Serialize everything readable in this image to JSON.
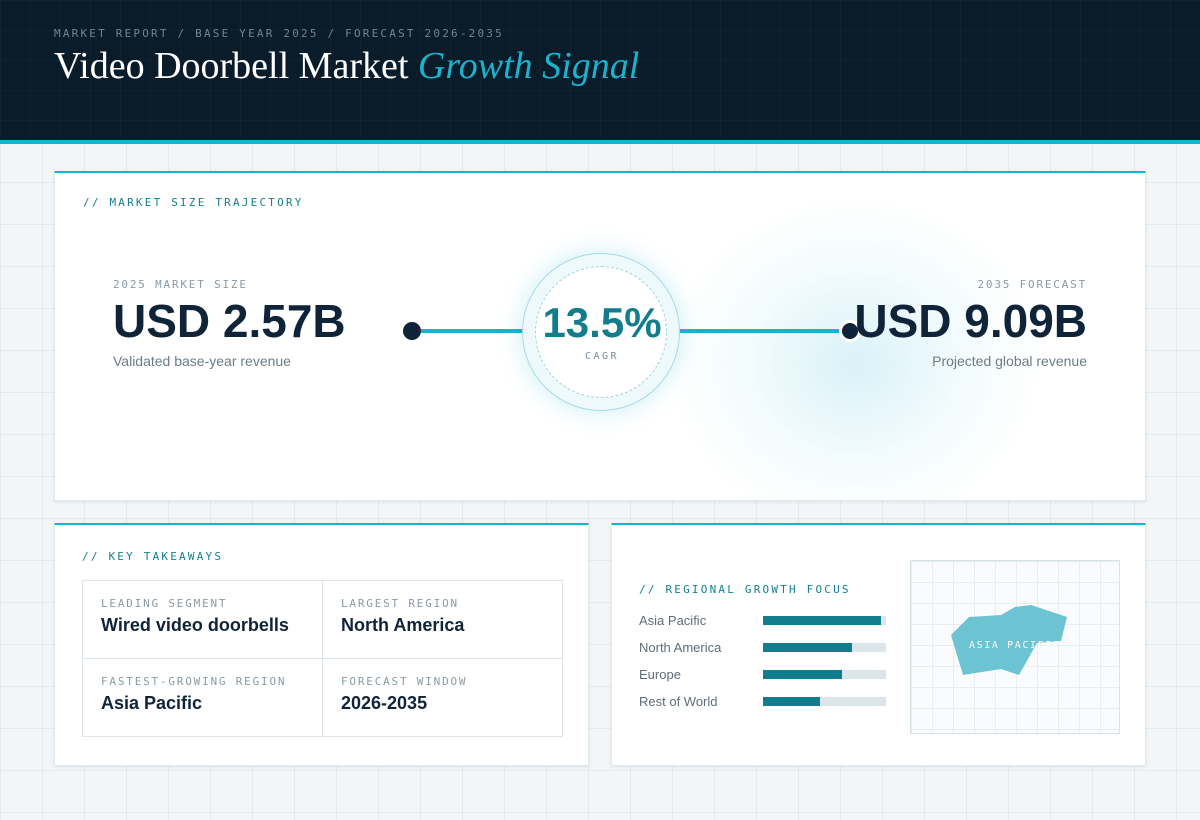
{
  "header": {
    "breadcrumb": "MARKET REPORT / BASE YEAR 2025 / FORECAST 2026-2035",
    "title": "Video Doorbell Market",
    "title_accent": "Growth Signal"
  },
  "trajectory": {
    "label": "// MARKET SIZE TRAJECTORY",
    "start": {
      "caption": "2025 MARKET SIZE",
      "value": "USD 2.57B",
      "sub": "Validated base-year revenue"
    },
    "cagr": {
      "value": "13.5%",
      "caption": "CAGR"
    },
    "end": {
      "caption": "2035 FORECAST",
      "value": "USD 9.09B",
      "sub": "Projected global revenue"
    }
  },
  "takeaways": {
    "label": "// KEY TAKEAWAYS",
    "items": [
      {
        "caption": "LEADING SEGMENT",
        "value": "Wired video doorbells"
      },
      {
        "caption": "LARGEST REGION",
        "value": "North America"
      },
      {
        "caption": "FASTEST-GROWING REGION",
        "value": "Asia Pacific"
      },
      {
        "caption": "FORECAST WINDOW",
        "value": "2026-2035"
      }
    ]
  },
  "regional": {
    "label": "// REGIONAL GROWTH FOCUS",
    "bars": [
      {
        "name": "Asia Pacific",
        "value": 0.96
      },
      {
        "name": "North America",
        "value": 0.72
      },
      {
        "name": "Europe",
        "value": 0.64
      },
      {
        "name": "Rest of World",
        "value": 0.46
      }
    ],
    "map_label": "ASIA PACIFIC"
  },
  "colors": {
    "accent": "#12b5d0",
    "bar": "#127d8c",
    "map_shape": "#6cc3d2",
    "header_bg": "#0a1b2a"
  }
}
